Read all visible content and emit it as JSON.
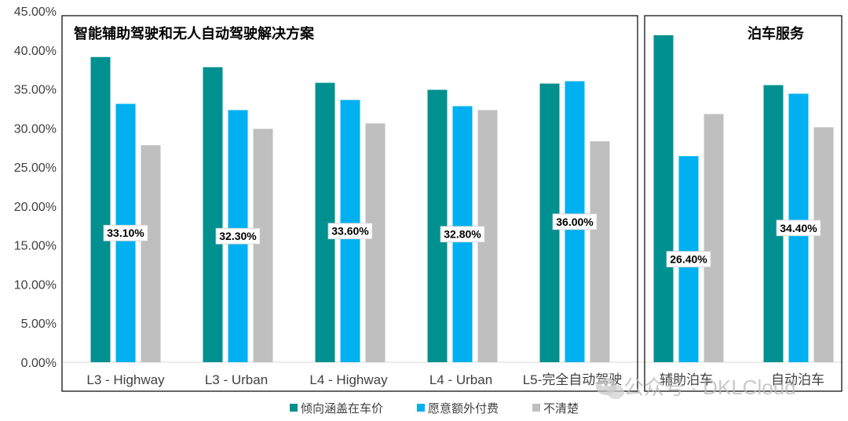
{
  "chart_data": {
    "type": "bar",
    "ylim": [
      0,
      45
    ],
    "yticks": [
      "0.00%",
      "5.00%",
      "10.00%",
      "15.00%",
      "20.00%",
      "25.00%",
      "30.00%",
      "35.00%",
      "40.00%",
      "45.00%"
    ],
    "panels": [
      {
        "title": "智能辅助驾驶和无人自动驾驶解决方案",
        "categories": [
          "L3 - Highway",
          "L3 - Urban",
          "L4 - Highway",
          "L4 - Urban",
          "L5-完全自动驾驶"
        ],
        "series": [
          {
            "name": "倾向涵盖在车价",
            "values": [
              39.1,
              37.8,
              35.8,
              34.9,
              35.7
            ]
          },
          {
            "name": "愿意额外付费",
            "values": [
              33.1,
              32.3,
              33.6,
              32.8,
              36.0
            ]
          },
          {
            "name": "不清楚",
            "values": [
              27.8,
              29.9,
              30.6,
              32.3,
              28.3
            ]
          }
        ],
        "data_labels": [
          "33.10%",
          "32.30%",
          "33.60%",
          "32.80%",
          "36.00%"
        ]
      },
      {
        "title": "泊车服务",
        "categories": [
          "辅助泊车",
          "自动泊车"
        ],
        "series": [
          {
            "name": "倾向涵盖在车价",
            "values": [
              41.9,
              35.5
            ]
          },
          {
            "name": "愿意额外付费",
            "values": [
              26.4,
              34.4
            ]
          },
          {
            "name": "不清楚",
            "values": [
              31.8,
              30.1
            ]
          }
        ],
        "data_labels": [
          "26.40%",
          "34.40%"
        ]
      }
    ],
    "legend": [
      "倾向涵盖在车价",
      "愿意额外付费",
      "不清楚"
    ],
    "colors": [
      "#009090",
      "#00b0f0",
      "#bfbfbf"
    ]
  },
  "watermark": "公众号 · DKLCloud"
}
